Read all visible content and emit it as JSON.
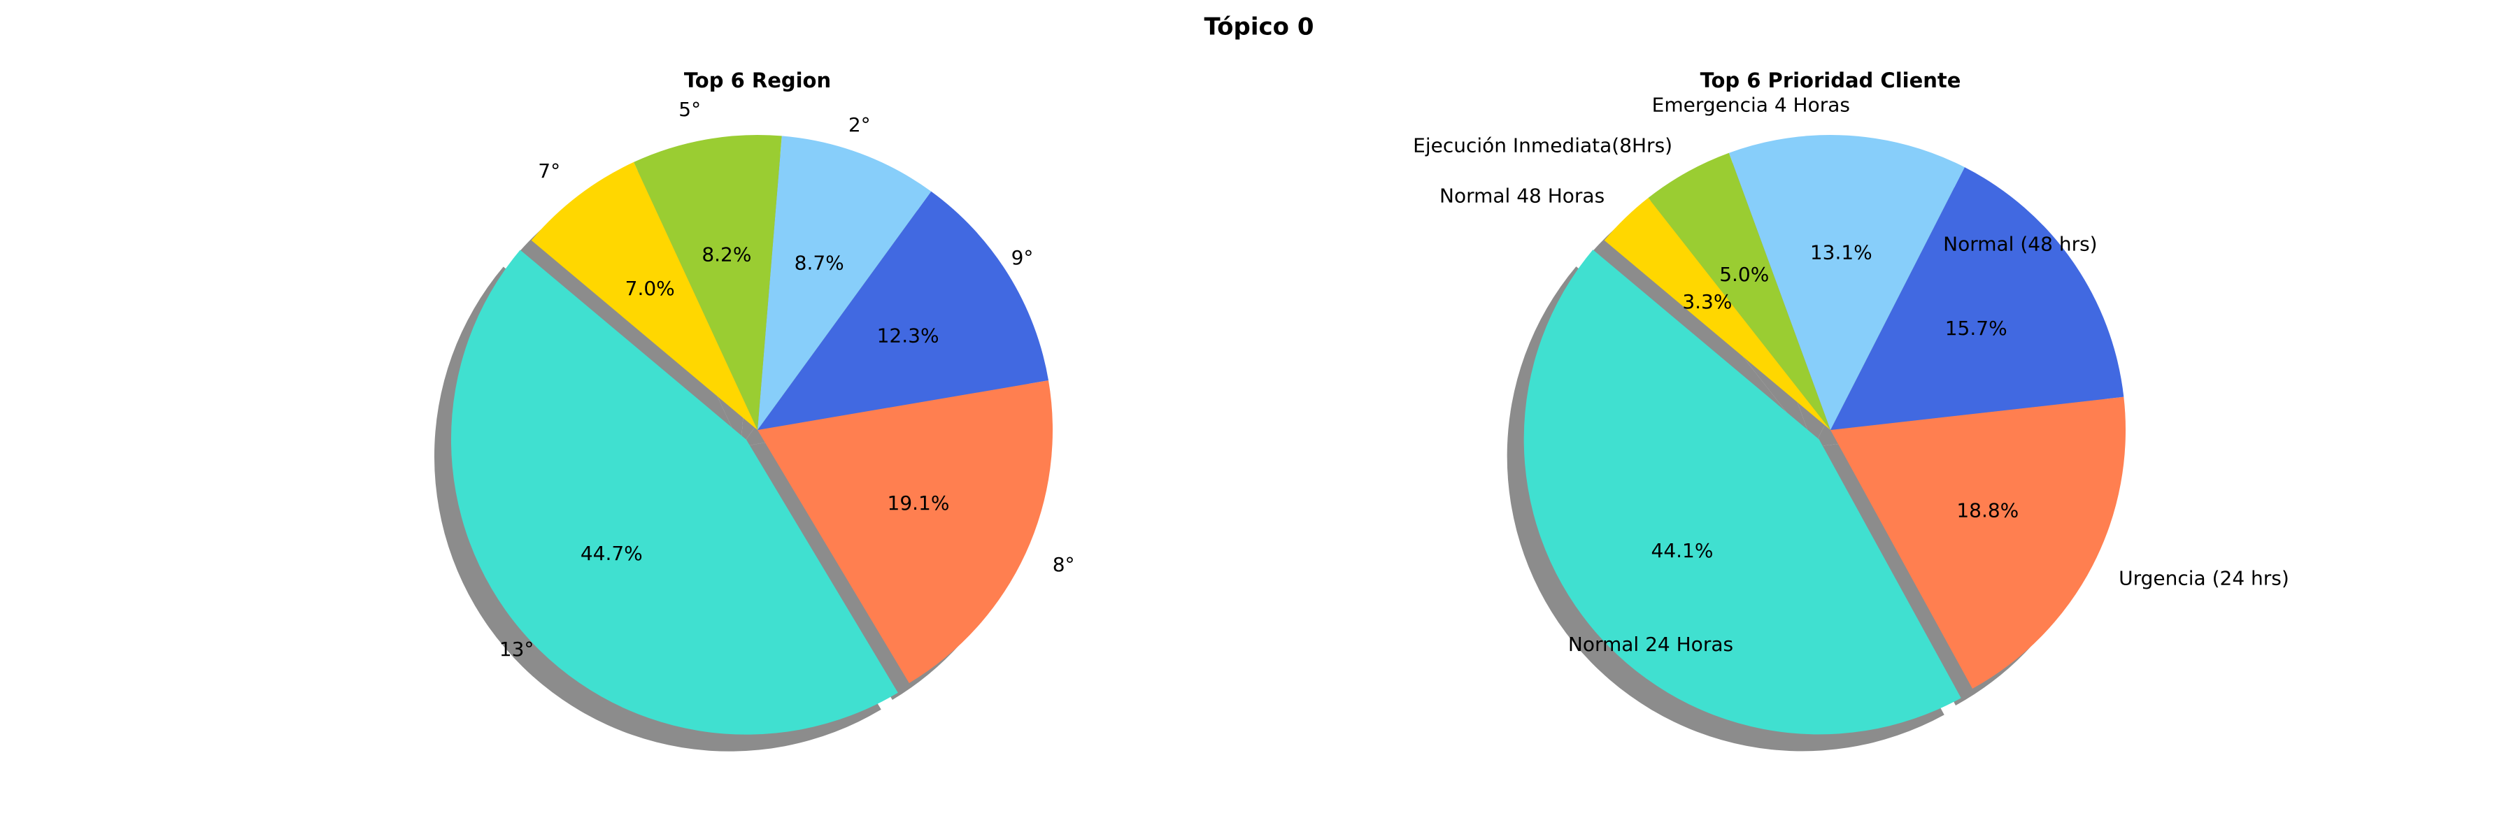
{
  "figure": {
    "suptitle": "Tópico 0",
    "background": "#ffffff",
    "shadow_color": "#7f7f7f"
  },
  "chart_data": [
    {
      "type": "pie",
      "title": "Top 6 Region",
      "start_angle_deg": 140,
      "counterclockwise": true,
      "explode": [
        0.05,
        0,
        0,
        0,
        0,
        0
      ],
      "shadow": true,
      "slices": [
        {
          "label": "13°",
          "value": 44.7,
          "pct_label": "44.7%",
          "color": "#40e0d0"
        },
        {
          "label": "8°",
          "value": 19.1,
          "pct_label": "19.1%",
          "color": "#ff7f50"
        },
        {
          "label": "9°",
          "value": 12.3,
          "pct_label": "12.3%",
          "color": "#4169e1"
        },
        {
          "label": "2°",
          "value": 8.7,
          "pct_label": "8.7%",
          "color": "#87cefa"
        },
        {
          "label": "5°",
          "value": 8.2,
          "pct_label": "8.2%",
          "color": "#9acd32"
        },
        {
          "label": "7°",
          "value": 7.0,
          "pct_label": "7.0%",
          "color": "#ffd700"
        }
      ]
    },
    {
      "type": "pie",
      "title": "Top 6 Prioridad Cliente",
      "start_angle_deg": 140,
      "counterclockwise": true,
      "explode": [
        0.05,
        0,
        0,
        0,
        0,
        0
      ],
      "shadow": true,
      "slices": [
        {
          "label": "Normal 24 Horas",
          "value": 44.1,
          "pct_label": "44.1%",
          "color": "#40e0d0"
        },
        {
          "label": "Urgencia (24 hrs)",
          "value": 18.8,
          "pct_label": "18.8%",
          "color": "#ff7f50"
        },
        {
          "label": "Normal (48 hrs)",
          "value": 15.7,
          "pct_label": "15.7%",
          "color": "#4169e1"
        },
        {
          "label": "Emergencia 4 Horas",
          "value": 13.1,
          "pct_label": "13.1%",
          "color": "#87cefa"
        },
        {
          "label": "Ejecución Inmediata(8Hrs)",
          "value": 5.0,
          "pct_label": "5.0%",
          "color": "#9acd32"
        },
        {
          "label": "Normal 48 Horas",
          "value": 3.3,
          "pct_label": "3.3%",
          "color": "#ffd700"
        }
      ]
    }
  ]
}
